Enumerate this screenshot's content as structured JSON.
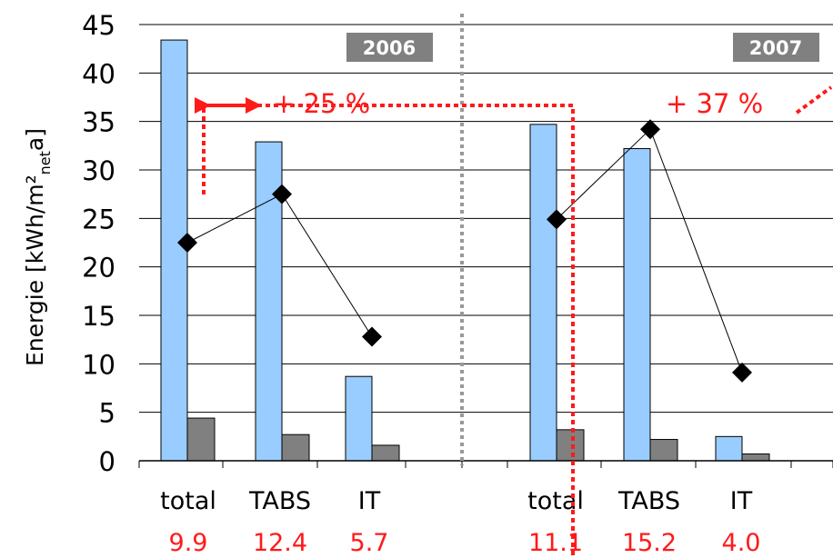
{
  "chart_data": {
    "type": "bar",
    "ylabel_main": "Energie [kWh/m²",
    "ylabel_sub": "net",
    "ylabel_tail": "a]",
    "ylim": [
      0,
      45
    ],
    "yticks": [
      0,
      5,
      10,
      15,
      20,
      25,
      30,
      35,
      40,
      45
    ],
    "grid": true,
    "panels": [
      {
        "year": "2006",
        "categories": [
          "total",
          "TABS",
          "IT"
        ],
        "ratios": [
          "9.9",
          "12.4",
          "5.7"
        ],
        "bars_blue": [
          43.4,
          32.9,
          8.7
        ],
        "bars_gray": [
          4.4,
          2.7,
          1.6
        ],
        "diamonds": [
          22.5,
          27.5,
          12.8
        ],
        "increase": "+ 25 %"
      },
      {
        "year": "2007",
        "categories": [
          "total",
          "TABS",
          "IT"
        ],
        "ratios": [
          "11.1",
          "15.2",
          "4.0"
        ],
        "bars_blue": [
          34.7,
          32.2,
          2.5
        ],
        "bars_gray": [
          3.2,
          2.2,
          0.7
        ],
        "diamonds": [
          24.9,
          34.2,
          9.1
        ],
        "increase": "+ 37 %"
      }
    ],
    "colors": {
      "blue_bar": "#99ccff",
      "gray_bar": "#808080",
      "diamond": "#000000",
      "annotation": "#ff1a1a",
      "year_box": "#808080"
    }
  }
}
